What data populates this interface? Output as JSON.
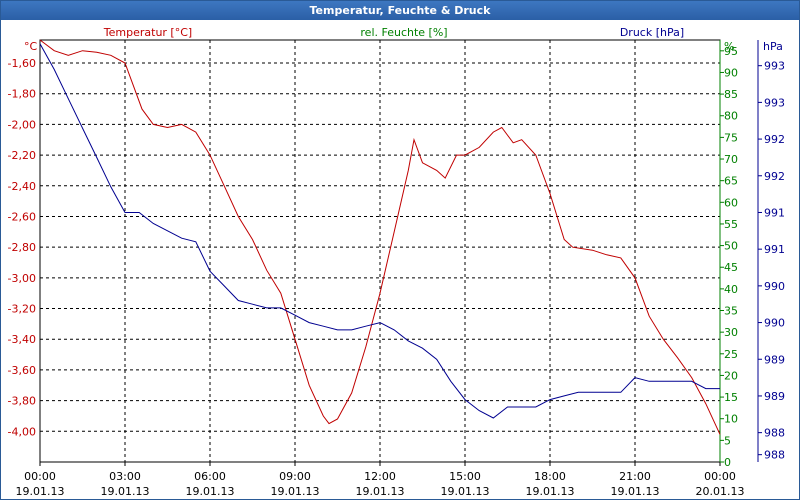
{
  "window": {
    "title": "Temperatur, Feuchte & Druck"
  },
  "colors": {
    "temperature": "#c00000",
    "humidity": "#008000",
    "pressure": "#000090",
    "grid": "#000000"
  },
  "chart_data": {
    "type": "line",
    "title": "Temperatur, Feuchte & Druck",
    "axes": {
      "temperature": {
        "label": "Temperatur [°C]",
        "unit": "°C",
        "range": [
          -4.2,
          -1.45
        ],
        "ticks": [
          "-1,60",
          "-1,80",
          "-2,00",
          "-2,20",
          "-2,40",
          "-2,60",
          "-2,80",
          "-3,00",
          "-3,20",
          "-3,40",
          "-3,60",
          "-3,80",
          "-4,00"
        ],
        "tick_values": [
          -1.6,
          -1.8,
          -2.0,
          -2.2,
          -2.4,
          -2.6,
          -2.8,
          -3.0,
          -3.2,
          -3.4,
          -3.6,
          -3.8,
          -4.0
        ]
      },
      "humidity": {
        "label": "rel. Feuchte [%]",
        "unit": "%",
        "range": [
          0,
          97.5
        ],
        "ticks": [
          "95",
          "90",
          "85",
          "80",
          "75",
          "70",
          "65",
          "60",
          "55",
          "50",
          "45",
          "40",
          "35",
          "30",
          "25",
          "20",
          "15",
          "10",
          "5",
          "0"
        ],
        "tick_values": [
          95,
          90,
          85,
          80,
          75,
          70,
          65,
          60,
          55,
          50,
          45,
          40,
          35,
          30,
          25,
          20,
          15,
          10,
          5,
          0
        ]
      },
      "pressure": {
        "label": "Druck [hPa]",
        "unit": "hPa",
        "range": [
          987.85,
          993.6
        ],
        "ticks": [
          "993",
          "993",
          "992",
          "992",
          "991",
          "991",
          "990",
          "990",
          "989",
          "989",
          "988",
          "988"
        ],
        "tick_values": [
          993.25,
          992.75,
          992.25,
          991.75,
          991.25,
          990.75,
          990.25,
          989.75,
          989.25,
          988.75,
          988.25,
          987.95
        ]
      }
    },
    "x_ticks": [
      {
        "time": "00:00",
        "date": "19.01.13"
      },
      {
        "time": "03:00",
        "date": "19.01.13"
      },
      {
        "time": "06:00",
        "date": "19.01.13"
      },
      {
        "time": "09:00",
        "date": "19.01.13"
      },
      {
        "time": "12:00",
        "date": "19.01.13"
      },
      {
        "time": "15:00",
        "date": "19.01.13"
      },
      {
        "time": "18:00",
        "date": "19.01.13"
      },
      {
        "time": "21:00",
        "date": "19.01.13"
      },
      {
        "time": "00:00",
        "date": "20.01.13"
      }
    ],
    "x_range_hours": [
      0,
      24
    ],
    "series": [
      {
        "name": "Temperatur [°C]",
        "axis": "temperature",
        "points": [
          [
            0,
            -1.45
          ],
          [
            0.5,
            -1.52
          ],
          [
            1,
            -1.55
          ],
          [
            1.5,
            -1.52
          ],
          [
            2,
            -1.53
          ],
          [
            2.5,
            -1.55
          ],
          [
            3,
            -1.6
          ],
          [
            3.2,
            -1.7
          ],
          [
            3.6,
            -1.9
          ],
          [
            4,
            -2.0
          ],
          [
            4.5,
            -2.02
          ],
          [
            5,
            -2.0
          ],
          [
            5.5,
            -2.05
          ],
          [
            6,
            -2.2
          ],
          [
            6.5,
            -2.4
          ],
          [
            7,
            -2.6
          ],
          [
            7.5,
            -2.75
          ],
          [
            8,
            -2.95
          ],
          [
            8.5,
            -3.1
          ],
          [
            9,
            -3.4
          ],
          [
            9.5,
            -3.7
          ],
          [
            10,
            -3.9
          ],
          [
            10.2,
            -3.95
          ],
          [
            10.5,
            -3.92
          ],
          [
            11,
            -3.75
          ],
          [
            11.5,
            -3.45
          ],
          [
            12,
            -3.1
          ],
          [
            12.5,
            -2.7
          ],
          [
            13,
            -2.3
          ],
          [
            13.2,
            -2.1
          ],
          [
            13.5,
            -2.25
          ],
          [
            14,
            -2.3
          ],
          [
            14.3,
            -2.35
          ],
          [
            14.7,
            -2.2
          ],
          [
            15,
            -2.2
          ],
          [
            15.5,
            -2.15
          ],
          [
            16,
            -2.05
          ],
          [
            16.3,
            -2.02
          ],
          [
            16.7,
            -2.12
          ],
          [
            17,
            -2.1
          ],
          [
            17.5,
            -2.2
          ],
          [
            18,
            -2.45
          ],
          [
            18.5,
            -2.75
          ],
          [
            18.8,
            -2.8
          ],
          [
            19.5,
            -2.82
          ],
          [
            20,
            -2.85
          ],
          [
            20.5,
            -2.87
          ],
          [
            21,
            -3.0
          ],
          [
            21.5,
            -3.25
          ],
          [
            22,
            -3.4
          ],
          [
            22.5,
            -3.52
          ],
          [
            23,
            -3.65
          ],
          [
            23.5,
            -3.82
          ],
          [
            24,
            -4.02
          ]
        ]
      },
      {
        "name": "Druck [hPa]",
        "axis": "pressure",
        "points": [
          [
            0,
            993.55
          ],
          [
            0.5,
            993.2
          ],
          [
            1,
            992.8
          ],
          [
            1.5,
            992.4
          ],
          [
            2,
            992.0
          ],
          [
            2.5,
            991.6
          ],
          [
            3,
            991.25
          ],
          [
            3.5,
            991.25
          ],
          [
            4,
            991.1
          ],
          [
            4.5,
            991.0
          ],
          [
            5,
            990.9
          ],
          [
            5.5,
            990.85
          ],
          [
            6,
            990.45
          ],
          [
            6.5,
            990.25
          ],
          [
            7,
            990.05
          ],
          [
            7.5,
            990.0
          ],
          [
            8,
            989.95
          ],
          [
            8.5,
            989.95
          ],
          [
            9,
            989.85
          ],
          [
            9.5,
            989.75
          ],
          [
            10,
            989.7
          ],
          [
            10.5,
            989.65
          ],
          [
            11,
            989.65
          ],
          [
            11.5,
            989.7
          ],
          [
            12,
            989.75
          ],
          [
            12.5,
            989.65
          ],
          [
            13,
            989.5
          ],
          [
            13.5,
            989.4
          ],
          [
            14,
            989.25
          ],
          [
            14.5,
            988.95
          ],
          [
            15,
            988.7
          ],
          [
            15.5,
            988.55
          ],
          [
            16,
            988.45
          ],
          [
            16.5,
            988.6
          ],
          [
            17,
            988.6
          ],
          [
            17.5,
            988.6
          ],
          [
            18,
            988.7
          ],
          [
            18.5,
            988.75
          ],
          [
            19,
            988.8
          ],
          [
            19.5,
            988.8
          ],
          [
            20,
            988.8
          ],
          [
            20.5,
            988.8
          ],
          [
            21,
            989.0
          ],
          [
            21.5,
            988.95
          ],
          [
            22,
            988.95
          ],
          [
            22.5,
            988.95
          ],
          [
            23,
            988.95
          ],
          [
            23.5,
            988.85
          ],
          [
            24,
            988.85
          ]
        ]
      }
    ]
  }
}
